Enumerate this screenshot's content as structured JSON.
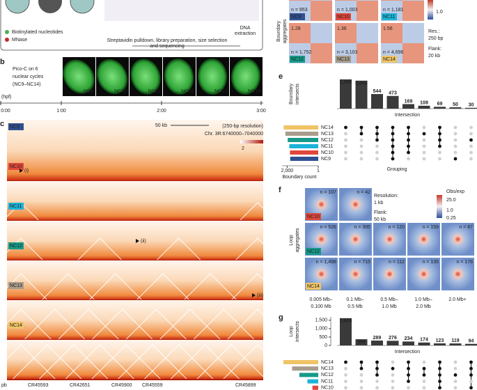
{
  "panel_a": {
    "legend": [
      "Biotinylated nucleotides",
      "MNase"
    ],
    "step_label": [
      "DNA",
      "extraction"
    ],
    "caption": [
      "Streptavidin pulldown, library preparation, size selection",
      "and sequencing"
    ]
  },
  "panel_b": {
    "letter": "b",
    "title": [
      "Pico-C on 6",
      "nuclear cycles",
      "(NC9–NC14)"
    ],
    "embryos": [
      "NC9",
      "NC10",
      "NC11",
      "NC12",
      "NC13",
      "NC14"
    ],
    "time_unit": "(hpf)",
    "times": [
      "0:00",
      "1:00",
      "2:00",
      "3:00"
    ]
  },
  "panel_c": {
    "letter": "c",
    "tracks": [
      {
        "name": "NC9",
        "color": "#2f4f8f"
      },
      {
        "name": "NC10",
        "color": "#e0473a"
      },
      {
        "name": "NC11",
        "color": "#1cb3d8"
      },
      {
        "name": "NC12",
        "color": "#159a89"
      },
      {
        "name": "NC13",
        "color": "#a89d8c"
      },
      {
        "name": "NC14",
        "color": "#f0c466"
      }
    ],
    "scale_bar": "50 kb",
    "resolution": "(250-bp resolution)",
    "region": "Chr. 3R:6740000–7040000",
    "colorbar_max": 2,
    "annotations": [
      "(i)",
      "(ii)",
      "(iii)"
    ],
    "genes": [
      "pb",
      "CR45593",
      "CR42651",
      "CR45900",
      "CR45559",
      "CR45899"
    ]
  },
  "boundary_aggregates": {
    "label": [
      "Boundary",
      "aggregates"
    ],
    "tiles": [
      {
        "stage": "NC9",
        "n": "n = 953"
      },
      {
        "stage": "NC10",
        "n": "n = 1,003"
      },
      {
        "stage": "NC11",
        "n": "n = 1,181"
      },
      {
        "stage": "NC12",
        "n": "n = 1,752",
        "score": "1.28"
      },
      {
        "stage": "NC13",
        "n": "n = 3,103",
        "score": "1.36"
      },
      {
        "stage": "NC14",
        "n": "n = 4,696",
        "score": "1.56"
      }
    ],
    "colorbar_label": "1.0",
    "resolution": [
      "Res.:",
      "250 bp"
    ],
    "flank": [
      "Flank:",
      "20 kb"
    ]
  },
  "panel_e": {
    "letter": "e",
    "y_label": [
      "Boundary",
      "intersects"
    ],
    "x_label": "Intersection",
    "intersections": [
      {
        "value": 1090,
        "label": "1,090"
      },
      {
        "value": 1043,
        "label": "1,043"
      },
      544,
      473,
      169,
      108,
      69,
      50,
      30
    ],
    "groups": [
      "NC14",
      "NC13",
      "NC12",
      "NC11",
      "NC10",
      "NC9"
    ],
    "membership": [
      [
        1,
        0,
        0,
        0,
        0,
        0
      ],
      [
        1,
        1,
        0,
        0,
        0,
        0
      ],
      [
        1,
        1,
        1,
        0,
        0,
        0
      ],
      [
        1,
        1,
        1,
        1,
        1,
        1
      ],
      [
        1,
        1,
        1,
        1,
        1,
        0
      ],
      [
        0,
        1,
        0,
        0,
        0,
        0
      ],
      [
        1,
        1,
        1,
        1,
        0,
        0
      ],
      [
        0,
        0,
        0,
        0,
        0,
        1
      ],
      [
        0,
        0,
        1,
        0,
        0,
        0
      ]
    ],
    "boundary_count": [
      4696,
      3103,
      1752,
      1181,
      1003,
      953
    ],
    "count_xlim": [
      1,
      5000
    ],
    "count_ticks": [
      {
        "value": 2000,
        "label": "2,000"
      },
      1
    ],
    "count_label": "Boundary count",
    "grouping_label": "Grouping"
  },
  "panel_f": {
    "letter": "f",
    "label": [
      "Loop",
      "aggregates"
    ],
    "rows": [
      {
        "stage": "NC10",
        "n": [
          "n = 107",
          "n = 42"
        ]
      },
      {
        "stage": "NC12",
        "n": [
          "n = 526",
          "n = 305",
          "n = 120",
          "n = 159",
          "n = 87"
        ]
      },
      {
        "stage": "NC14",
        "n": [
          "n = 1,498",
          "n = 715",
          "n = 112",
          "n = 135",
          "n = 178"
        ]
      }
    ],
    "resolution": [
      "Resolution:",
      "1 kb"
    ],
    "flank": [
      "Flank:",
      "50 kb"
    ],
    "colorbar": {
      "title": "Obs/exp",
      "labels": [
        "25.0",
        "1.0",
        "0.25"
      ]
    },
    "columns": [
      [
        "0.005 Mb–",
        "0.100 Mb"
      ],
      [
        "0.1 Mb–",
        "0.5 Mb"
      ],
      [
        "0.5 Mb–",
        "1.0 Mb"
      ],
      [
        "1.0 Mb–",
        "2.0 Mb"
      ],
      [
        "2.0 Mb+"
      ]
    ]
  },
  "panel_g": {
    "letter": "g",
    "y_label": [
      "Loop",
      "intersects"
    ],
    "x_label": "Intersection",
    "ylim": [
      0,
      1700
    ],
    "yticks": [
      {
        "value": 1500,
        "label": "1,500"
      },
      {
        "value": 1000,
        "label": "1,000"
      },
      500,
      0
    ],
    "intersections": [
      {
        "value": 1624,
        "label": "1,624"
      },
      369,
      289,
      276,
      234,
      174,
      123,
      119,
      94
    ],
    "groups": [
      "NC14",
      "NC13",
      "NC12",
      "NC11",
      "NC10"
    ],
    "membership": [
      [
        1,
        0,
        0,
        0,
        0
      ],
      [
        1,
        1,
        0,
        0,
        0
      ],
      [
        1,
        1,
        1,
        0,
        0
      ],
      [
        0,
        1,
        0,
        0,
        0
      ],
      [
        1,
        1,
        1,
        1,
        0
      ],
      [
        0,
        1,
        1,
        0,
        0
      ],
      [
        1,
        1,
        1,
        1,
        1
      ],
      [
        0,
        0,
        1,
        0,
        0
      ],
      [
        1,
        1,
        1,
        0,
        1
      ]
    ],
    "loop_count": [
      2640,
      1980,
      1430,
      820,
      440
    ]
  }
}
